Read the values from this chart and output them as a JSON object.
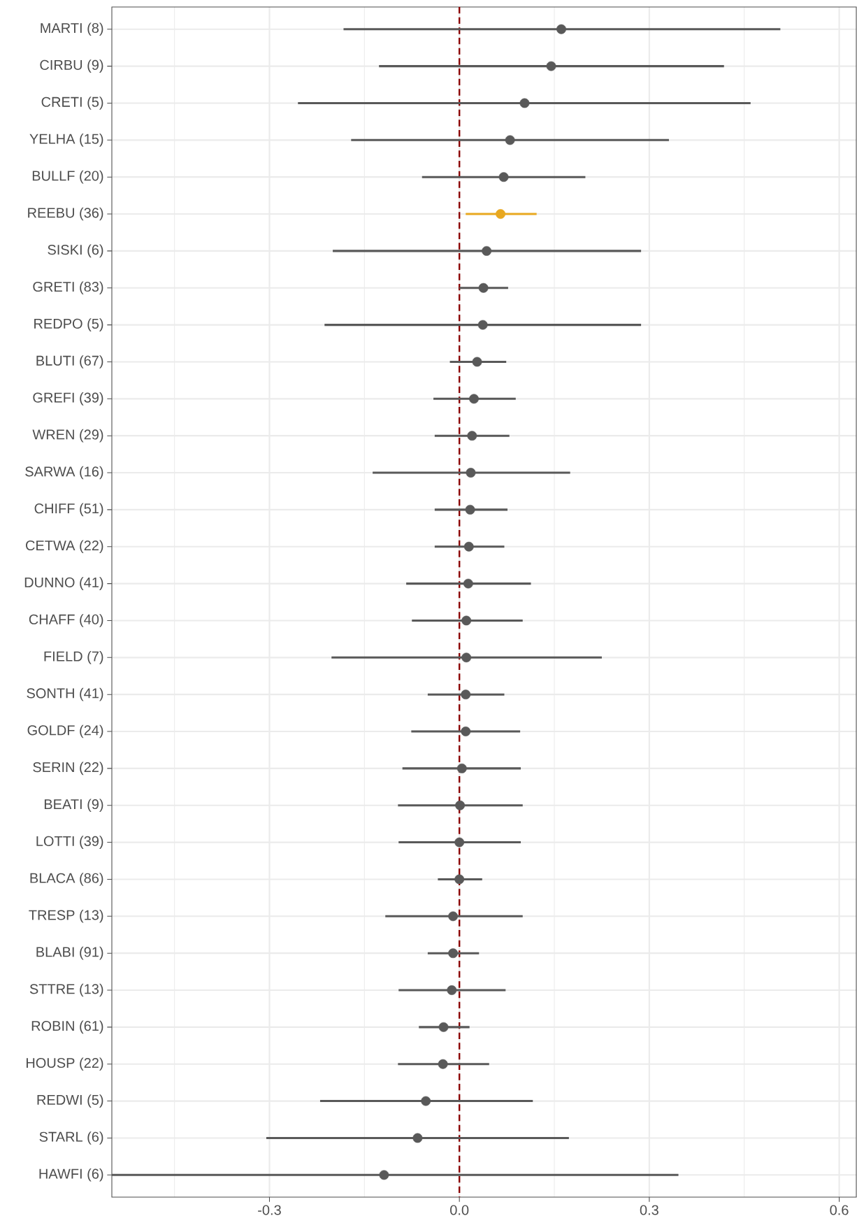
{
  "chart_data": {
    "type": "scatter",
    "orientation": "horizontal",
    "categories": [
      "MARTI (8)",
      "CIRBU (9)",
      "CRETI (5)",
      "YELHA (15)",
      "BULLF (20)",
      "REEBU (36)",
      "SISKI (6)",
      "GRETI (83)",
      "REDPO (5)",
      "BLUTI (67)",
      "GREFI (39)",
      "WREN (29)",
      "SARWA (16)",
      "CHIFF (51)",
      "CETWA (22)",
      "DUNNO (41)",
      "CHAFF (40)",
      "FIELD (7)",
      "SONTH (41)",
      "GOLDF (24)",
      "SERIN (22)",
      "BEATI (9)",
      "LOTTI (39)",
      "BLACA (86)",
      "TRESP (13)",
      "BLABI (91)",
      "STTRE (13)",
      "ROBIN (61)",
      "HOUSP (22)",
      "REDWI (5)",
      "STARL (6)",
      "HAWFI (6)"
    ],
    "values": [
      0.161,
      0.145,
      0.103,
      0.08,
      0.07,
      0.065,
      0.043,
      0.038,
      0.037,
      0.028,
      0.023,
      0.02,
      0.018,
      0.017,
      0.015,
      0.014,
      0.011,
      0.011,
      0.01,
      0.01,
      0.004,
      0.001,
      0.0,
      0.0,
      -0.01,
      -0.01,
      -0.012,
      -0.025,
      -0.026,
      -0.053,
      -0.066,
      -0.119
    ],
    "errors": [
      [
        -0.183,
        0.507
      ],
      [
        -0.127,
        0.418
      ],
      [
        -0.255,
        0.46
      ],
      [
        -0.171,
        0.331
      ],
      [
        -0.059,
        0.199
      ],
      [
        0.01,
        0.122
      ],
      [
        -0.2,
        0.287
      ],
      [
        0.0,
        0.077
      ],
      [
        -0.213,
        0.287
      ],
      [
        -0.015,
        0.074
      ],
      [
        -0.041,
        0.089
      ],
      [
        -0.039,
        0.079
      ],
      [
        -0.137,
        0.175
      ],
      [
        -0.039,
        0.076
      ],
      [
        -0.039,
        0.071
      ],
      [
        -0.084,
        0.113
      ],
      [
        -0.075,
        0.1
      ],
      [
        -0.202,
        0.225
      ],
      [
        -0.05,
        0.071
      ],
      [
        -0.076,
        0.096
      ],
      [
        -0.09,
        0.097
      ],
      [
        -0.097,
        0.1
      ],
      [
        -0.096,
        0.097
      ],
      [
        -0.034,
        0.036
      ],
      [
        -0.117,
        0.1
      ],
      [
        -0.05,
        0.031
      ],
      [
        -0.096,
        0.073
      ],
      [
        -0.064,
        0.016
      ],
      [
        -0.097,
        0.047
      ],
      [
        -0.22,
        0.116
      ],
      [
        -0.305,
        0.173
      ],
      [
        -0.549,
        0.346
      ]
    ],
    "colors": [
      "#595959",
      "#595959",
      "#595959",
      "#595959",
      "#595959",
      "#e8a820",
      "#595959",
      "#595959",
      "#595959",
      "#595959",
      "#595959",
      "#595959",
      "#595959",
      "#595959",
      "#595959",
      "#595959",
      "#595959",
      "#595959",
      "#595959",
      "#595959",
      "#595959",
      "#595959",
      "#595959",
      "#595959",
      "#595959",
      "#595959",
      "#595959",
      "#595959",
      "#595959",
      "#595959",
      "#595959",
      "#595959"
    ],
    "xlim": [
      -0.549,
      0.627
    ],
    "xticks": [
      -0.3,
      {
        "value": 0,
        "label": "0.0"
      },
      0.3,
      0.6
    ],
    "grid": true,
    "marker": "circle",
    "ref_lines": [
      {
        "axis": "x",
        "value": 0,
        "color": "#8b0000",
        "line_style": "dashed"
      }
    ]
  }
}
